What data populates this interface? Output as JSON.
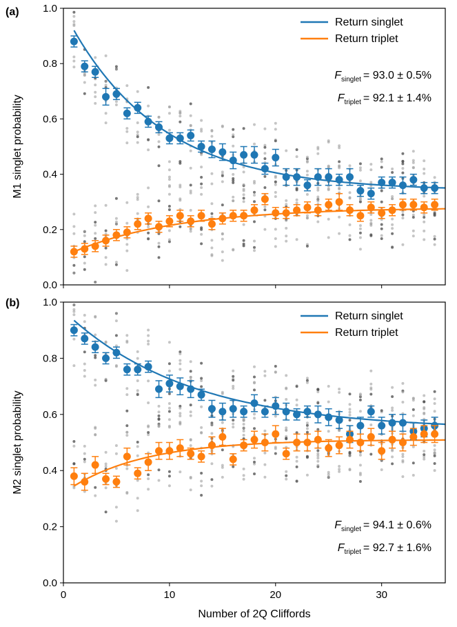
{
  "chart_data": [
    {
      "panel": "(a)",
      "type": "scatter",
      "ylabel": "M1 singlet probability",
      "xlabel": "",
      "xlim": [
        0,
        36
      ],
      "ylim": [
        0,
        1
      ],
      "xticks": [
        0,
        10,
        20,
        30
      ],
      "xtick_labels_shown": false,
      "yticks": [
        "0.0",
        "0.2",
        "0.4",
        "0.6",
        "0.8",
        "1.0"
      ],
      "legend_position": "top-right",
      "annotation_position": "top-right",
      "annotations": [
        {
          "var": "F",
          "sub": "singlet",
          "text": "= 93.0 ± 0.5%"
        },
        {
          "var": "F",
          "sub": "triplet",
          "text": "= 92.1 ± 1.4%"
        }
      ],
      "series": [
        {
          "name": "Return singlet",
          "color": "#1f77b4",
          "x": [
            1,
            2,
            3,
            4,
            5,
            6,
            7,
            8,
            9,
            10,
            11,
            12,
            13,
            14,
            15,
            16,
            17,
            18,
            19,
            20,
            21,
            22,
            23,
            24,
            25,
            26,
            27,
            28,
            29,
            30,
            31,
            32,
            33,
            34,
            35
          ],
          "y": [
            0.88,
            0.79,
            0.77,
            0.68,
            0.69,
            0.62,
            0.64,
            0.59,
            0.57,
            0.53,
            0.53,
            0.54,
            0.5,
            0.49,
            0.48,
            0.45,
            0.47,
            0.47,
            0.42,
            0.46,
            0.39,
            0.39,
            0.36,
            0.39,
            0.39,
            0.38,
            0.39,
            0.34,
            0.33,
            0.37,
            0.37,
            0.36,
            0.38,
            0.35,
            0.35
          ],
          "err": [
            0.02,
            0.02,
            0.02,
            0.03,
            0.02,
            0.02,
            0.02,
            0.02,
            0.02,
            0.02,
            0.02,
            0.02,
            0.02,
            0.03,
            0.03,
            0.03,
            0.03,
            0.03,
            0.02,
            0.03,
            0.03,
            0.03,
            0.02,
            0.03,
            0.03,
            0.02,
            0.03,
            0.02,
            0.02,
            0.02,
            0.02,
            0.03,
            0.02,
            0.02,
            0.02
          ],
          "fit": {
            "A": 0.58,
            "rate": 0.115,
            "B": 0.34
          }
        },
        {
          "name": "Return triplet",
          "color": "#ff7f0e",
          "x": [
            1,
            2,
            3,
            4,
            5,
            6,
            7,
            8,
            9,
            10,
            11,
            12,
            13,
            14,
            15,
            16,
            17,
            18,
            19,
            20,
            21,
            22,
            23,
            24,
            25,
            26,
            27,
            28,
            29,
            30,
            31,
            32,
            33,
            34,
            35
          ],
          "y": [
            0.12,
            0.13,
            0.14,
            0.16,
            0.18,
            0.19,
            0.22,
            0.24,
            0.21,
            0.23,
            0.25,
            0.23,
            0.25,
            0.22,
            0.24,
            0.25,
            0.25,
            0.27,
            0.31,
            0.26,
            0.26,
            0.27,
            0.28,
            0.27,
            0.29,
            0.3,
            0.27,
            0.25,
            0.28,
            0.26,
            0.27,
            0.29,
            0.29,
            0.28,
            0.29
          ],
          "err": [
            0.02,
            0.02,
            0.02,
            0.02,
            0.02,
            0.02,
            0.02,
            0.02,
            0.02,
            0.02,
            0.02,
            0.02,
            0.02,
            0.02,
            0.02,
            0.02,
            0.02,
            0.02,
            0.02,
            0.02,
            0.02,
            0.02,
            0.02,
            0.02,
            0.02,
            0.03,
            0.02,
            0.02,
            0.02,
            0.02,
            0.02,
            0.02,
            0.02,
            0.02,
            0.02
          ],
          "fit": {
            "A": -0.16,
            "rate": 0.1,
            "B": 0.28
          }
        }
      ],
      "scatter_counts_per_x": 8
    },
    {
      "panel": "(b)",
      "type": "scatter",
      "ylabel": "M2 singlet probability",
      "xlabel": "Number of 2Q Cliffords",
      "xlim": [
        0,
        36
      ],
      "ylim": [
        0,
        1
      ],
      "xticks": [
        0,
        10,
        20,
        30
      ],
      "xtick_labels_shown": true,
      "yticks": [
        "0.0",
        "0.2",
        "0.4",
        "0.6",
        "0.8",
        "1.0"
      ],
      "legend_position": "top-right",
      "annotation_position": "bottom-right",
      "annotations": [
        {
          "var": "F",
          "sub": "singlet",
          "text": "= 94.1 ± 0.6%"
        },
        {
          "var": "F",
          "sub": "triplet",
          "text": "= 92.7 ± 1.6%"
        }
      ],
      "series": [
        {
          "name": "Return singlet",
          "color": "#1f77b4",
          "x": [
            1,
            2,
            3,
            4,
            5,
            6,
            7,
            8,
            9,
            10,
            11,
            12,
            13,
            14,
            15,
            16,
            17,
            18,
            19,
            20,
            21,
            22,
            23,
            24,
            25,
            26,
            27,
            28,
            29,
            30,
            31,
            32,
            33,
            34,
            35
          ],
          "y": [
            0.9,
            0.87,
            0.84,
            0.8,
            0.82,
            0.76,
            0.76,
            0.77,
            0.69,
            0.71,
            0.7,
            0.69,
            0.67,
            0.62,
            0.61,
            0.62,
            0.61,
            0.64,
            0.61,
            0.63,
            0.61,
            0.6,
            0.61,
            0.6,
            0.59,
            0.58,
            0.53,
            0.56,
            0.61,
            0.56,
            0.57,
            0.57,
            0.54,
            0.55,
            0.56
          ],
          "err": [
            0.02,
            0.02,
            0.02,
            0.02,
            0.02,
            0.02,
            0.02,
            0.02,
            0.03,
            0.03,
            0.03,
            0.03,
            0.02,
            0.03,
            0.03,
            0.03,
            0.02,
            0.03,
            0.02,
            0.03,
            0.03,
            0.02,
            0.02,
            0.03,
            0.03,
            0.03,
            0.03,
            0.03,
            0.02,
            0.03,
            0.03,
            0.03,
            0.03,
            0.03,
            0.03
          ],
          "fit": {
            "A": 0.39,
            "rate": 0.085,
            "B": 0.545
          }
        },
        {
          "name": "Return triplet",
          "color": "#ff7f0e",
          "x": [
            1,
            2,
            3,
            4,
            5,
            6,
            7,
            8,
            9,
            10,
            11,
            12,
            13,
            14,
            15,
            16,
            17,
            18,
            19,
            20,
            21,
            22,
            23,
            24,
            25,
            26,
            27,
            28,
            29,
            30,
            31,
            32,
            33,
            34,
            35
          ],
          "y": [
            0.38,
            0.36,
            0.42,
            0.37,
            0.36,
            0.45,
            0.39,
            0.43,
            0.47,
            0.47,
            0.48,
            0.46,
            0.45,
            0.49,
            0.52,
            0.44,
            0.49,
            0.51,
            0.5,
            0.53,
            0.46,
            0.5,
            0.5,
            0.51,
            0.48,
            0.49,
            0.51,
            0.5,
            0.52,
            0.47,
            0.51,
            0.5,
            0.52,
            0.53,
            0.53
          ],
          "err": [
            0.03,
            0.03,
            0.03,
            0.02,
            0.02,
            0.03,
            0.02,
            0.03,
            0.03,
            0.03,
            0.03,
            0.02,
            0.02,
            0.03,
            0.03,
            0.02,
            0.02,
            0.03,
            0.03,
            0.03,
            0.02,
            0.03,
            0.03,
            0.03,
            0.03,
            0.03,
            0.03,
            0.03,
            0.03,
            0.03,
            0.03,
            0.03,
            0.03,
            0.03,
            0.03
          ],
          "fit": {
            "A": -0.165,
            "rate": 0.14,
            "B": 0.51
          }
        }
      ],
      "scatter_counts_per_x": 8
    }
  ],
  "colors": {
    "singlet": "#1f77b4",
    "triplet": "#ff7f0e",
    "raw_points": "#9e9e9e"
  }
}
